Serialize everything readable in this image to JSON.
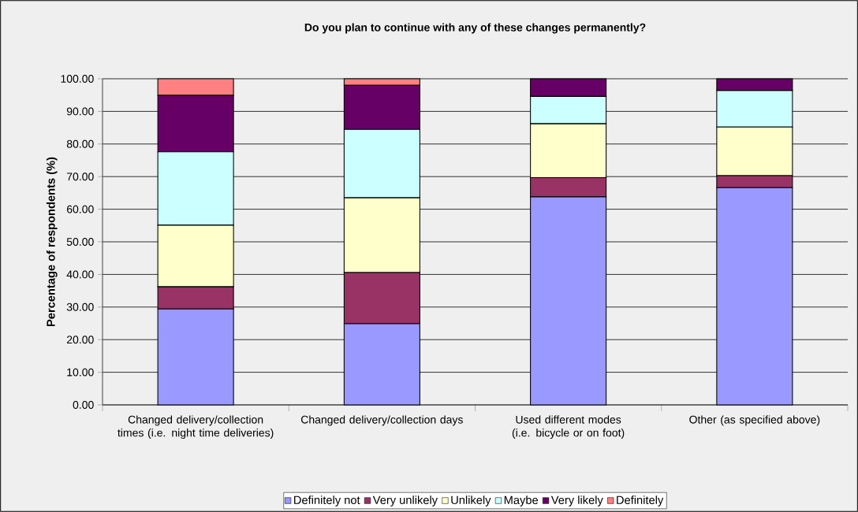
{
  "chart_data": {
    "type": "bar",
    "stacked": true,
    "title": "Do you plan to continue with any of these changes permanently?",
    "ylabel": "Percentage of respondents (%)",
    "categories": [
      "Changed delivery/collection times (i.e. night time deliveries)",
      "Changed delivery/collection days",
      "Used different modes (i.e. bicycle or on foot)",
      "Other (as specified above)"
    ],
    "series": [
      {
        "name": "Definitely not",
        "color": "#9999ff",
        "values": [
          29.4,
          24.9,
          63.8,
          66.6
        ]
      },
      {
        "name": "Very unlikely",
        "color": "#993366",
        "values": [
          6.8,
          15.7,
          5.9,
          3.7
        ]
      },
      {
        "name": "Unlikely",
        "color": "#ffffcc",
        "values": [
          18.9,
          22.9,
          16.5,
          14.9
        ]
      },
      {
        "name": "Maybe",
        "color": "#ccffff",
        "values": [
          22.5,
          21.0,
          8.4,
          11.2
        ]
      },
      {
        "name": "Very likely",
        "color": "#660066",
        "values": [
          17.3,
          13.5,
          5.4,
          3.6
        ]
      },
      {
        "name": "Definitely",
        "color": "#ff8080",
        "values": [
          5.1,
          2.0,
          0,
          0
        ]
      }
    ],
    "ylim": [
      0,
      100
    ],
    "yticks": [
      {
        "value": 0,
        "label": "0.00"
      },
      {
        "value": 10,
        "label": "10.00"
      },
      {
        "value": 20,
        "label": "20.00"
      },
      {
        "value": 30,
        "label": "30.00"
      },
      {
        "value": 40,
        "label": "40.00"
      },
      {
        "value": 50,
        "label": "50.00"
      },
      {
        "value": 60,
        "label": "60.00"
      },
      {
        "value": 70,
        "label": "70.00"
      },
      {
        "value": 80,
        "label": "80.00"
      },
      {
        "value": 90,
        "label": "90.00"
      },
      {
        "value": 100,
        "label": "100.00"
      }
    ],
    "grid": "y",
    "legend": "bottom"
  }
}
